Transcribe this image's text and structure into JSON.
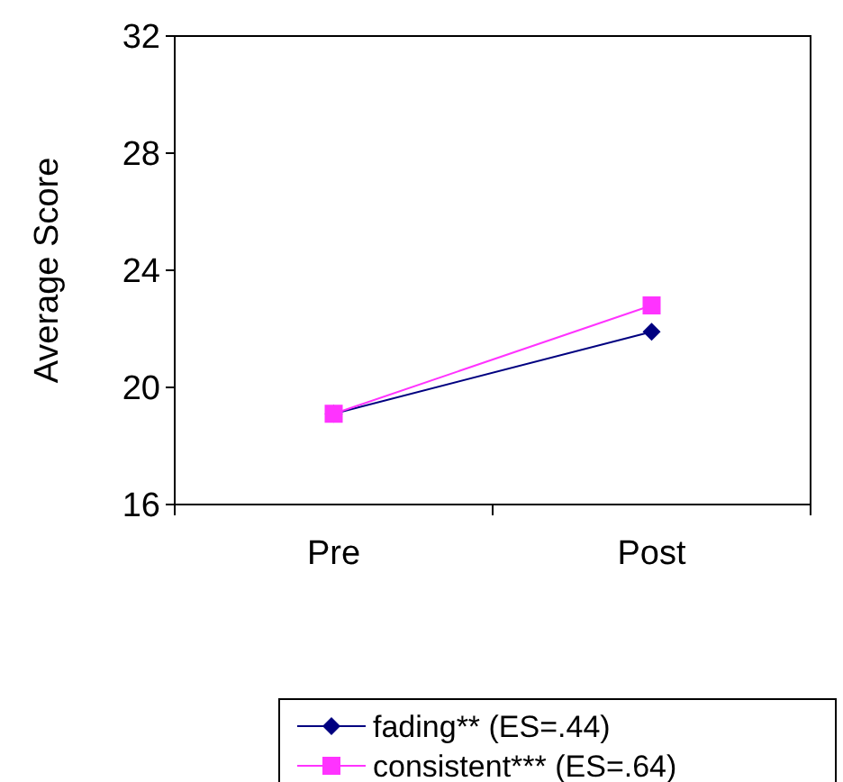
{
  "chart_data": {
    "type": "line",
    "ylabel": "Average Score",
    "categories": [
      "Pre",
      "Post"
    ],
    "ylim": [
      16,
      32
    ],
    "yticks": [
      16,
      20,
      24,
      28,
      32
    ],
    "grid": false,
    "legend": "bottom",
    "series": [
      {
        "name": "fading** (ES=.44)",
        "color": "#000080",
        "marker": "diamond",
        "values": [
          19.1,
          21.9
        ]
      },
      {
        "name": "consistent*** (ES=.64)",
        "color": "#ff33ff",
        "marker": "square",
        "values": [
          19.1,
          22.8
        ]
      }
    ]
  }
}
